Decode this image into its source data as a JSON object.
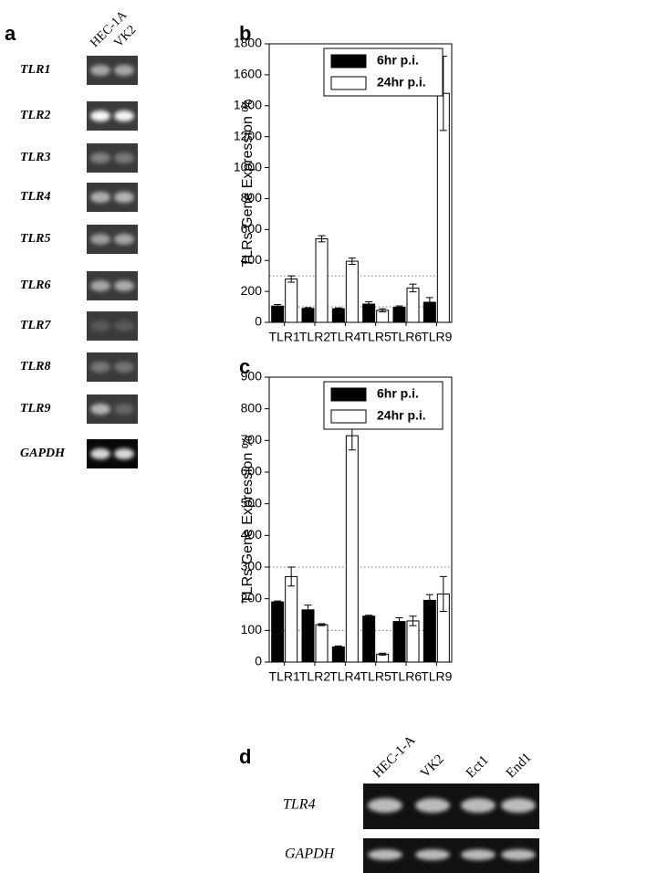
{
  "panel_a": {
    "label": "a",
    "lanes": [
      "HEC-1A",
      "VK2"
    ],
    "rows": [
      "TLR1",
      "TLR2",
      "TLR3",
      "TLR4",
      "TLR5",
      "TLR6",
      "TLR7",
      "TLR8",
      "TLR9",
      "GAPDH"
    ]
  },
  "chart_data": [
    {
      "type": "bar",
      "label": "b",
      "y_label": "TLRs Gene Expression %",
      "categories": [
        "TLR1",
        "TLR2",
        "TLR4",
        "TLR5",
        "TLR6",
        "TLR9"
      ],
      "series": [
        {
          "name": "6hr p.i.",
          "color": "#000000",
          "values": [
            105,
            90,
            88,
            118,
            98,
            130
          ],
          "errors": [
            10,
            5,
            5,
            15,
            8,
            30
          ]
        },
        {
          "name": "24hr p.i.",
          "color": "#ffffff",
          "values": [
            280,
            540,
            395,
            78,
            222,
            1480
          ],
          "errors": [
            20,
            20,
            20,
            10,
            25,
            240
          ]
        }
      ],
      "ylim": [
        0,
        1800
      ],
      "yticks": [
        0,
        200,
        400,
        600,
        800,
        1000,
        1200,
        1400,
        1600,
        1800
      ],
      "hlines": [
        100,
        300
      ],
      "legend": "upper left"
    },
    {
      "type": "bar",
      "label": "c",
      "y_label": "TLRs Gene Expression %",
      "categories": [
        "TLR1",
        "TLR2",
        "TLR4",
        "TLR5",
        "TLR6",
        "TLR9"
      ],
      "series": [
        {
          "name": "6hr p.i.",
          "color": "#000000",
          "values": [
            190,
            165,
            48,
            145,
            128,
            195
          ],
          "errors": [
            3,
            15,
            3,
            3,
            12,
            18
          ]
        },
        {
          "name": "24hr p.i.",
          "color": "#ffffff",
          "values": [
            270,
            118,
            715,
            25,
            130,
            215
          ],
          "errors": [
            30,
            3,
            45,
            3,
            15,
            55
          ]
        }
      ],
      "ylim": [
        0,
        900
      ],
      "yticks": [
        0,
        100,
        200,
        300,
        400,
        500,
        600,
        700,
        800,
        900
      ],
      "hlines": [
        100,
        300
      ],
      "legend": "upper left"
    }
  ],
  "panel_d": {
    "label": "d",
    "lanes": [
      "HEC-1-A",
      "VK2",
      "Ect1",
      "End1"
    ],
    "rows": [
      "TLR4",
      "GAPDH"
    ]
  }
}
